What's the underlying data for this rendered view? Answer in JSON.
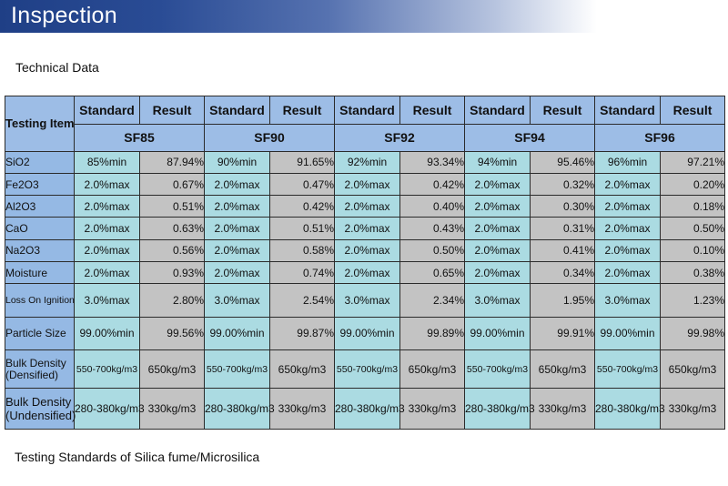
{
  "banner": {
    "title": "Inspection"
  },
  "subtitle": "Technical Data",
  "footer": "Testing Standards of Silica fume/Microsilica",
  "table": {
    "corner_label": "Testing Item",
    "col_standard": "Standard",
    "col_result": "Result",
    "grades": [
      "SF85",
      "SF90",
      "SF92",
      "SF94",
      "SF96"
    ],
    "rows": [
      {
        "item": "SiO2",
        "cells": [
          [
            "85%min",
            "87.94%"
          ],
          [
            "90%min",
            "91.65%"
          ],
          [
            "92%min",
            "93.34%"
          ],
          [
            "94%min",
            "95.46%"
          ],
          [
            "96%min",
            "97.21%"
          ]
        ]
      },
      {
        "item": "Fe2O3",
        "cells": [
          [
            "2.0%max",
            "0.67%"
          ],
          [
            "2.0%max",
            "0.47%"
          ],
          [
            "2.0%max",
            "0.42%"
          ],
          [
            "2.0%max",
            "0.32%"
          ],
          [
            "2.0%max",
            "0.20%"
          ]
        ]
      },
      {
        "item": "Al2O3",
        "cells": [
          [
            "2.0%max",
            "0.51%"
          ],
          [
            "2.0%max",
            "0.42%"
          ],
          [
            "2.0%max",
            "0.40%"
          ],
          [
            "2.0%max",
            "0.30%"
          ],
          [
            "2.0%max",
            "0.18%"
          ]
        ]
      },
      {
        "item": "CaO",
        "cells": [
          [
            "2.0%max",
            "0.63%"
          ],
          [
            "2.0%max",
            "0.51%"
          ],
          [
            "2.0%max",
            "0.43%"
          ],
          [
            "2.0%max",
            "0.31%"
          ],
          [
            "2.0%max",
            "0.50%"
          ]
        ]
      },
      {
        "item": "Na2O3",
        "cells": [
          [
            "2.0%max",
            "0.56%"
          ],
          [
            "2.0%max",
            "0.58%"
          ],
          [
            "2.0%max",
            "0.50%"
          ],
          [
            "2.0%max",
            "0.41%"
          ],
          [
            "2.0%max",
            "0.10%"
          ]
        ]
      },
      {
        "item": "Moisture",
        "cells": [
          [
            "2.0%max",
            "0.93%"
          ],
          [
            "2.0%max",
            "0.74%"
          ],
          [
            "2.0%max",
            "0.65%"
          ],
          [
            "2.0%max",
            "0.34%"
          ],
          [
            "2.0%max",
            "0.38%"
          ]
        ]
      },
      {
        "item": "Loss On Ignition",
        "cells": [
          [
            "3.0%max",
            "2.80%"
          ],
          [
            "3.0%max",
            "2.54%"
          ],
          [
            "3.0%max",
            "2.34%"
          ],
          [
            "3.0%max",
            "1.95%"
          ],
          [
            "3.0%max",
            "1.23%"
          ]
        ]
      },
      {
        "item": "Particle Size",
        "cells": [
          [
            "99.00%min",
            "99.56%"
          ],
          [
            "99.00%min",
            "99.87%"
          ],
          [
            "99.00%min",
            "99.89%"
          ],
          [
            "99.00%min",
            "99.91%"
          ],
          [
            "99.00%min",
            "99.98%"
          ]
        ]
      },
      {
        "item": "Bulk Density (Densified)",
        "cells": [
          [
            "550-700kg/m3",
            "650kg/m3"
          ],
          [
            "550-700kg/m3",
            "650kg/m3"
          ],
          [
            "550-700kg/m3",
            "650kg/m3"
          ],
          [
            "550-700kg/m3",
            "650kg/m3"
          ],
          [
            "550-700kg/m3",
            "650kg/m3"
          ]
        ]
      },
      {
        "item": "Bulk Density (Undensified)",
        "cells": [
          [
            "280-380kg/m3",
            "330kg/m3"
          ],
          [
            "280-380kg/m3",
            "330kg/m3"
          ],
          [
            "280-380kg/m3",
            "330kg/m3"
          ],
          [
            "280-380kg/m3",
            "330kg/m3"
          ],
          [
            "280-380kg/m3",
            "330kg/m3"
          ]
        ]
      }
    ]
  }
}
